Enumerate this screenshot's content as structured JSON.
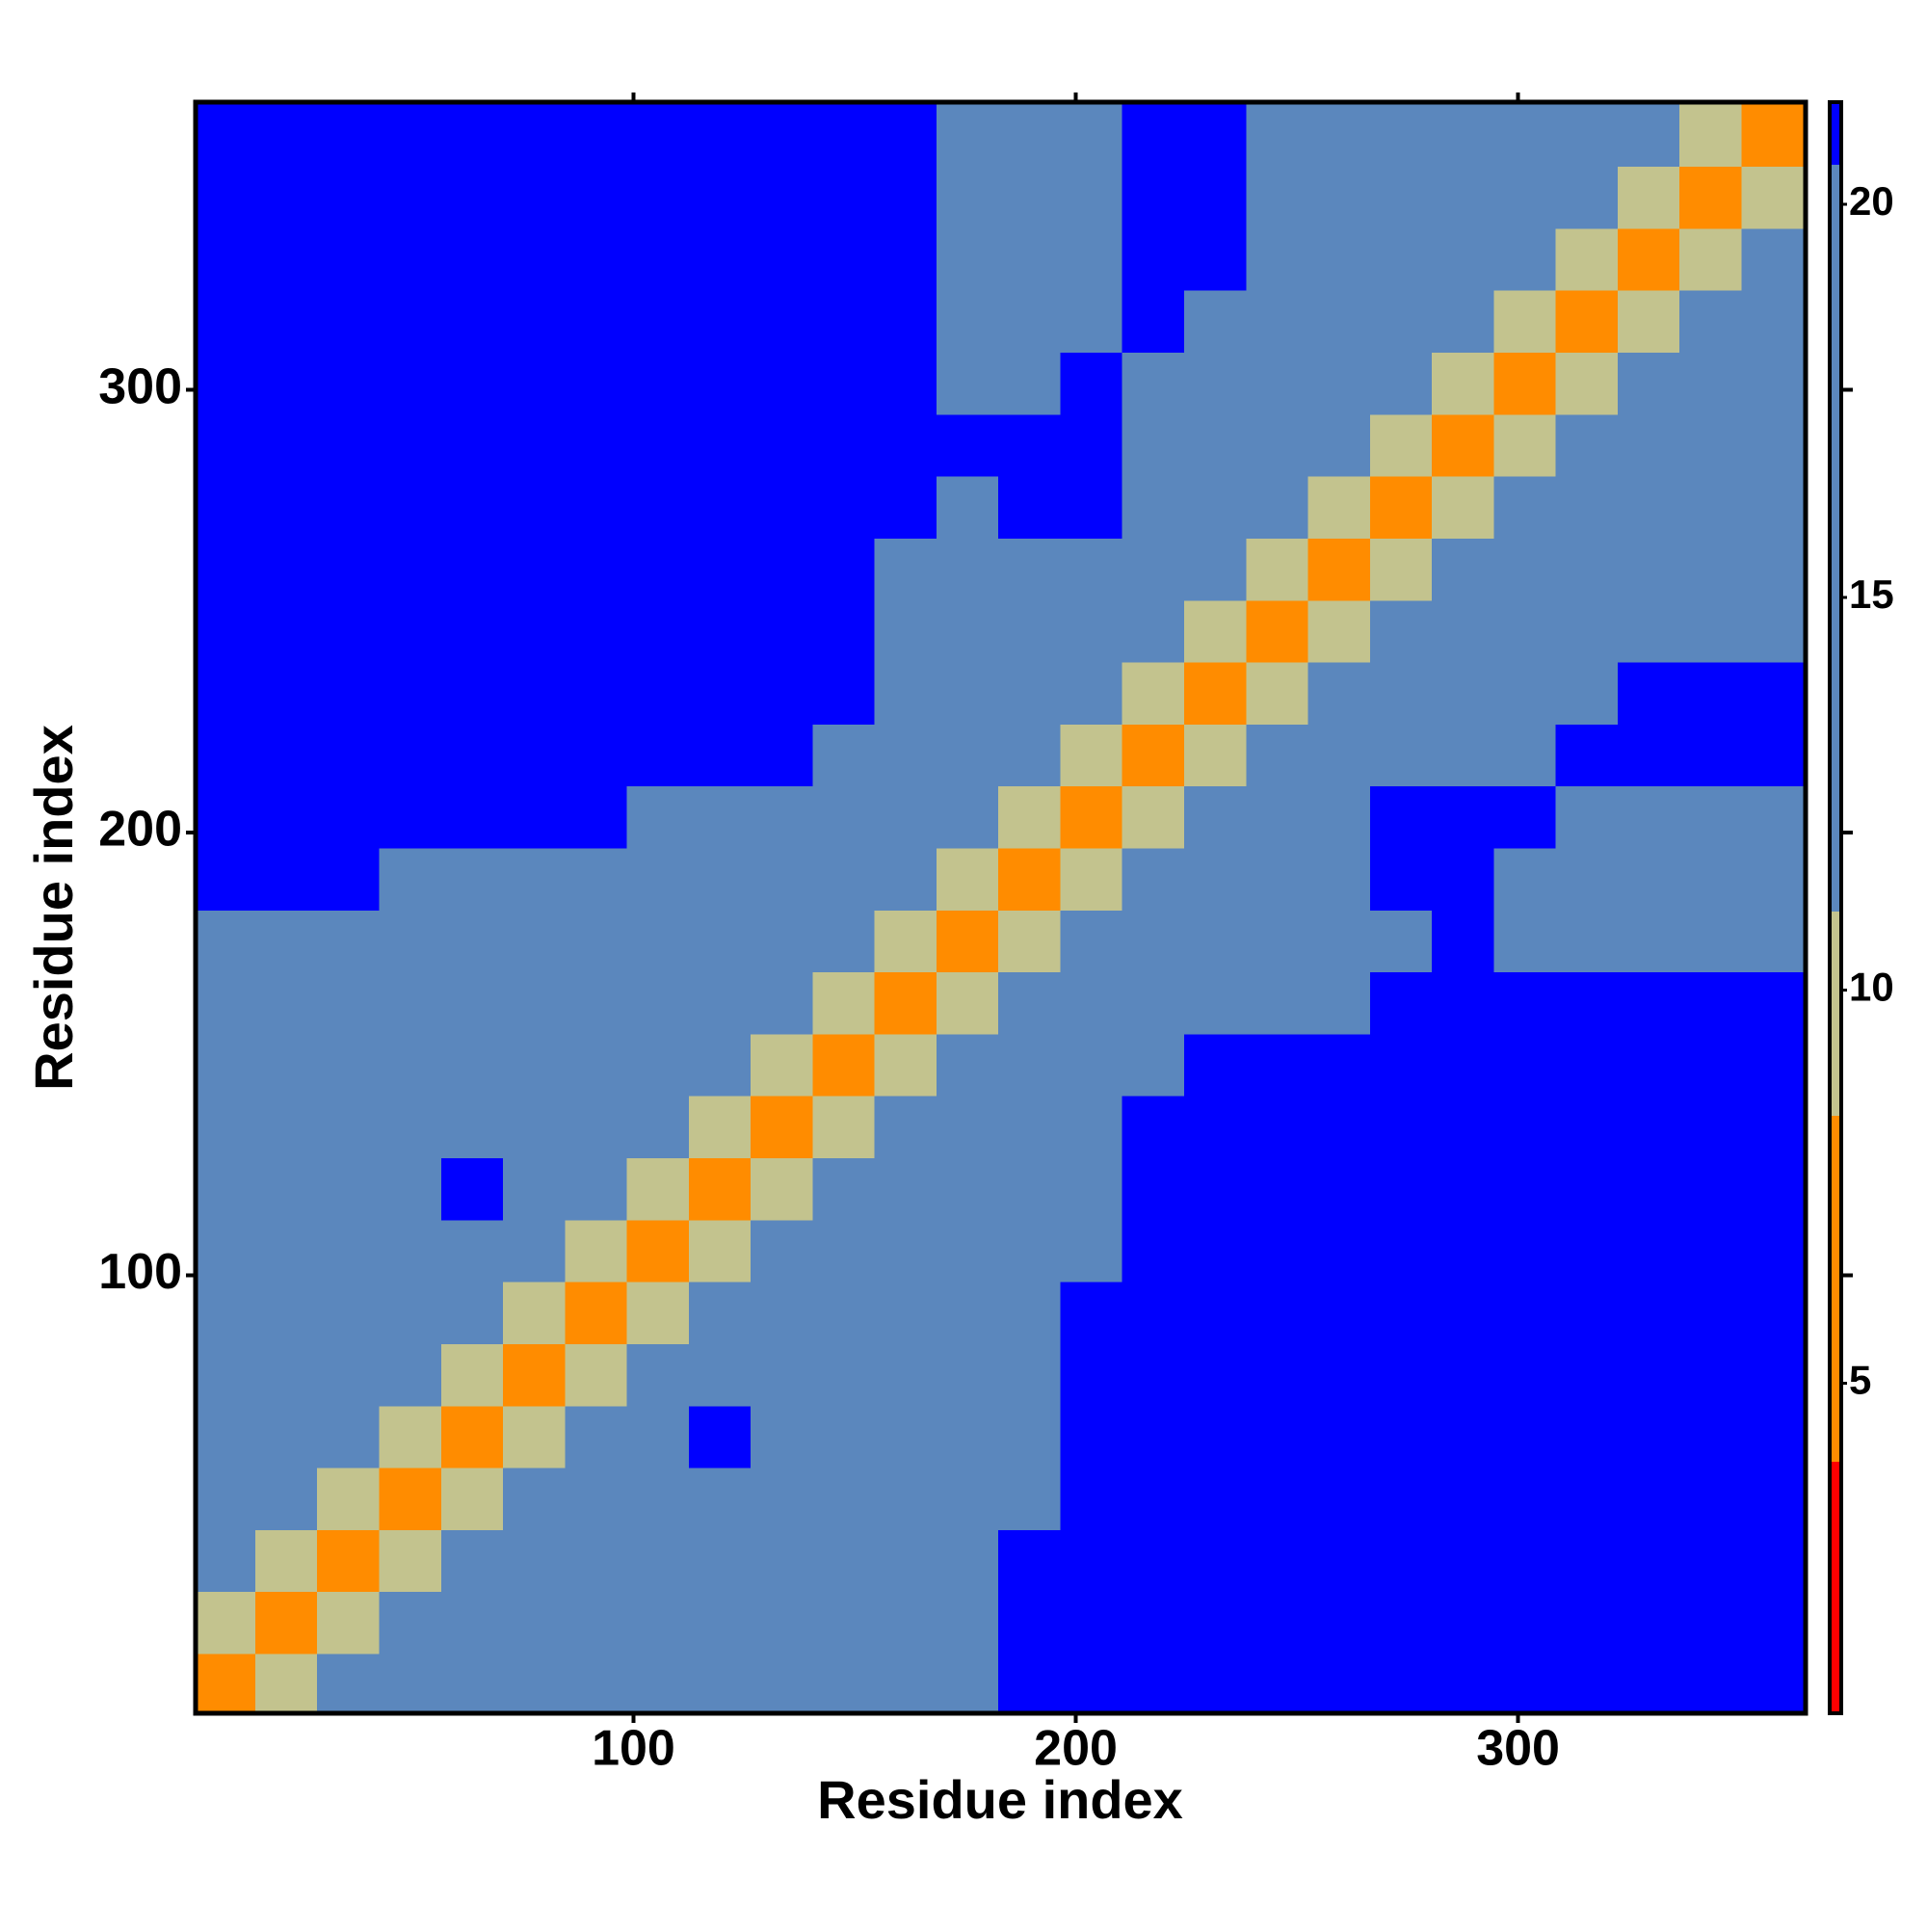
{
  "chart_data": {
    "type": "heatmap",
    "x_label": "Residue index",
    "y_label": "Residue index",
    "xlim": [
      1,
      365
    ],
    "ylim": [
      1,
      365
    ],
    "xticks": [
      100,
      200,
      300
    ],
    "yticks": [
      100,
      200,
      300
    ],
    "bins": [
      0.5,
      14.5,
      28.5,
      42.5,
      56.5,
      70.5,
      84.5,
      98.5,
      112.5,
      126.5,
      140.5,
      154.5,
      168.5,
      182.5,
      196.5,
      210.5,
      224.5,
      238.5,
      252.5,
      266.5,
      280.5,
      294.5,
      308.5,
      322.5,
      336.5,
      350.5,
      364.5
    ],
    "matrix": [
      [
        5,
        10,
        14,
        16,
        17,
        17,
        18,
        18,
        19,
        20,
        19,
        19,
        20,
        21,
        23,
        27,
        29,
        30,
        31,
        32,
        33,
        33,
        34,
        34,
        35,
        35
      ],
      [
        10,
        5,
        10,
        13,
        15,
        16,
        17,
        17,
        18,
        19,
        19,
        19,
        20,
        21,
        23,
        26,
        28,
        29,
        30,
        31,
        32,
        33,
        33,
        34,
        34,
        35
      ],
      [
        14,
        10,
        5,
        10,
        13,
        15,
        16,
        17,
        17,
        18,
        18,
        19,
        19,
        21,
        22,
        26,
        28,
        28,
        29,
        30,
        31,
        32,
        32,
        33,
        34,
        34
      ],
      [
        16,
        13,
        10,
        5,
        10,
        13,
        15,
        16,
        17,
        17,
        18,
        18,
        19,
        20,
        22,
        25,
        27,
        28,
        29,
        29,
        30,
        31,
        32,
        33,
        33,
        34
      ],
      [
        17,
        15,
        13,
        10,
        5,
        10,
        13,
        15,
        22,
        17,
        16,
        17,
        18,
        20,
        22,
        25,
        27,
        27,
        28,
        29,
        29,
        30,
        31,
        32,
        32,
        33
      ],
      [
        17,
        16,
        15,
        13,
        10,
        5,
        10,
        13,
        15,
        16,
        17,
        17,
        18,
        20,
        22,
        25,
        26,
        27,
        28,
        28,
        29,
        30,
        30,
        31,
        32,
        32
      ],
      [
        18,
        17,
        16,
        15,
        13,
        10,
        5,
        10,
        13,
        15,
        16,
        17,
        18,
        19,
        21,
        24,
        26,
        26,
        27,
        28,
        28,
        29,
        30,
        30,
        31,
        32
      ],
      [
        18,
        17,
        17,
        16,
        15,
        13,
        10,
        5,
        10,
        13,
        15,
        16,
        17,
        18,
        20,
        23,
        25,
        26,
        26,
        27,
        27,
        28,
        29,
        29,
        30,
        31
      ],
      [
        19,
        18,
        17,
        17,
        22,
        15,
        13,
        10,
        5,
        10,
        13,
        15,
        16,
        17,
        19,
        22,
        24,
        25,
        25,
        26,
        26,
        27,
        28,
        28,
        29,
        30
      ],
      [
        20,
        19,
        18,
        17,
        17,
        16,
        15,
        13,
        10,
        5,
        10,
        13,
        15,
        16,
        18,
        21,
        23,
        24,
        24,
        25,
        25,
        26,
        27,
        27,
        28,
        29
      ],
      [
        19,
        19,
        18,
        18,
        16,
        17,
        16,
        15,
        13,
        10,
        5,
        10,
        13,
        15,
        17,
        19,
        22,
        22,
        23,
        24,
        24,
        25,
        26,
        26,
        27,
        28
      ],
      [
        19,
        19,
        19,
        18,
        17,
        17,
        17,
        16,
        15,
        13,
        10,
        5,
        10,
        13,
        15,
        18,
        19,
        19,
        20,
        21,
        22,
        22,
        23,
        24,
        24,
        25
      ],
      [
        20,
        20,
        19,
        19,
        18,
        18,
        18,
        17,
        16,
        15,
        13,
        10,
        5,
        10,
        13,
        16,
        18,
        18,
        19,
        20,
        21,
        19,
        18,
        18,
        18,
        17
      ],
      [
        21,
        21,
        21,
        20,
        20,
        20,
        19,
        18,
        17,
        16,
        15,
        13,
        10,
        5,
        10,
        13,
        16,
        18,
        19,
        21,
        22,
        20,
        18,
        18,
        17,
        17
      ],
      [
        23,
        23,
        22,
        22,
        22,
        22,
        21,
        20,
        19,
        18,
        17,
        15,
        13,
        10,
        5,
        10,
        13,
        16,
        19,
        21,
        22,
        21,
        20,
        19,
        18,
        17
      ],
      [
        27,
        26,
        26,
        25,
        25,
        25,
        24,
        23,
        22,
        21,
        19,
        18,
        16,
        13,
        10,
        5,
        10,
        13,
        15,
        17,
        18,
        20,
        22,
        23,
        23,
        23
      ],
      [
        29,
        28,
        28,
        27,
        27,
        26,
        26,
        25,
        24,
        23,
        22,
        19,
        18,
        16,
        13,
        10,
        5,
        10,
        13,
        15,
        16,
        18,
        20,
        22,
        23,
        24
      ],
      [
        30,
        29,
        28,
        28,
        27,
        27,
        26,
        26,
        25,
        24,
        22,
        19,
        18,
        18,
        16,
        13,
        10,
        5,
        10,
        13,
        15,
        16,
        17,
        18,
        19,
        20
      ],
      [
        31,
        30,
        29,
        29,
        28,
        28,
        27,
        26,
        25,
        24,
        23,
        20,
        19,
        19,
        19,
        15,
        13,
        10,
        5,
        10,
        13,
        15,
        16,
        16,
        17,
        17
      ],
      [
        32,
        31,
        30,
        29,
        29,
        28,
        28,
        27,
        26,
        25,
        24,
        21,
        20,
        21,
        21,
        17,
        15,
        13,
        10,
        5,
        10,
        13,
        15,
        16,
        16,
        17
      ],
      [
        33,
        32,
        31,
        30,
        29,
        29,
        28,
        27,
        26,
        25,
        24,
        22,
        21,
        22,
        22,
        18,
        16,
        15,
        13,
        10,
        5,
        10,
        13,
        15,
        16,
        16
      ],
      [
        33,
        33,
        32,
        31,
        30,
        30,
        29,
        28,
        27,
        26,
        25,
        22,
        19,
        20,
        21,
        20,
        18,
        16,
        15,
        13,
        10,
        5,
        10,
        13,
        15,
        16
      ],
      [
        34,
        33,
        32,
        32,
        31,
        30,
        30,
        29,
        28,
        27,
        26,
        23,
        18,
        18,
        20,
        22,
        20,
        17,
        16,
        15,
        13,
        10,
        5,
        10,
        13,
        15
      ],
      [
        34,
        34,
        33,
        33,
        32,
        31,
        30,
        29,
        28,
        27,
        26,
        24,
        18,
        18,
        19,
        23,
        22,
        18,
        16,
        16,
        15,
        13,
        10,
        5,
        10,
        13
      ],
      [
        35,
        34,
        34,
        33,
        32,
        32,
        31,
        30,
        29,
        28,
        27,
        24,
        18,
        17,
        18,
        23,
        23,
        19,
        17,
        16,
        16,
        15,
        13,
        10,
        5,
        10
      ],
      [
        35,
        35,
        34,
        34,
        33,
        32,
        32,
        31,
        30,
        29,
        28,
        25,
        17,
        17,
        17,
        23,
        24,
        20,
        17,
        17,
        16,
        16,
        15,
        13,
        10,
        5
      ]
    ],
    "clim": [
      0.8,
      21.3
    ],
    "cticks": [
      5,
      10,
      15,
      20
    ],
    "colorscale": [
      {
        "max": 4,
        "color": "#ff0000"
      },
      {
        "max": 8.4,
        "color": "#ff8c00"
      },
      {
        "max": 11,
        "color": "#c3c38e"
      },
      {
        "max": 20.5,
        "color": "#5b87bd"
      },
      {
        "max": 21.3,
        "color": "#0000ff"
      }
    ]
  }
}
